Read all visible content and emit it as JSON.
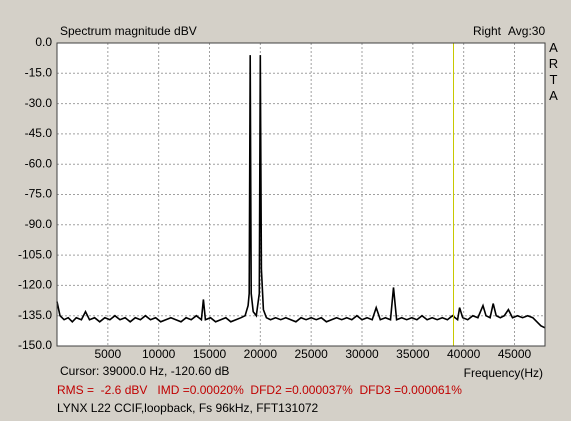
{
  "chart_data": {
    "type": "line",
    "title": "Spectrum magnitude dBV",
    "channel": "Right",
    "averaging": "Avg:30",
    "brand": "ARTA",
    "x_label": "Frequency(Hz)",
    "cursor": {
      "x": 39000,
      "label": "Cursor: 39000.0 Hz, -120.60 dB",
      "color": "#c8c800"
    },
    "measurements": "RMS =  -2.6 dBV   IMD =0.00020%  DFD2 =0.000037%  DFD3 =0.000061%",
    "description": "LYNX L22 CCIF,loopback, Fs 96kHz, FFT131072",
    "color": "#000000",
    "grid": true,
    "xlim": [
      0,
      48000
    ],
    "ylim": [
      -150,
      0
    ],
    "xticks": [
      5000,
      10000,
      15000,
      20000,
      25000,
      30000,
      35000,
      40000,
      45000
    ],
    "yticks": [
      {
        "value": 0,
        "label": "0.0"
      },
      {
        "value": -15,
        "label": "-15.0"
      },
      {
        "value": -30,
        "label": "-30.0"
      },
      {
        "value": -45,
        "label": "-45.0"
      },
      {
        "value": -60,
        "label": "-60.0"
      },
      {
        "value": -75,
        "label": "-75.0"
      },
      {
        "value": -90,
        "label": "-90.0"
      },
      {
        "value": -105,
        "label": "-105.0"
      },
      {
        "value": -120,
        "label": "-120.0"
      },
      {
        "value": -135,
        "label": "-135.0"
      },
      {
        "value": -150,
        "label": "-150.0"
      }
    ],
    "x": [
      0,
      300,
      700,
      1100,
      1500,
      1900,
      2400,
      2800,
      3200,
      3700,
      4200,
      4700,
      5200,
      5700,
      6200,
      6700,
      7200,
      7700,
      8200,
      8700,
      9200,
      9700,
      10200,
      10700,
      11200,
      11700,
      12200,
      12700,
      13200,
      13700,
      14200,
      14400,
      14600,
      15100,
      15600,
      16100,
      16600,
      17100,
      17600,
      18100,
      18500,
      18800,
      18900,
      19000,
      19100,
      19300,
      19600,
      19900,
      20000,
      20100,
      20300,
      20600,
      21000,
      21500,
      22000,
      22500,
      23000,
      23500,
      24000,
      24500,
      25000,
      25500,
      26000,
      26500,
      27000,
      27500,
      28000,
      28500,
      29000,
      29500,
      30000,
      30500,
      31000,
      31400,
      31800,
      32300,
      32800,
      33100,
      33400,
      33900,
      34400,
      34900,
      35400,
      35900,
      36400,
      36900,
      37400,
      37900,
      38400,
      38900,
      39400,
      39600,
      39900,
      40400,
      40900,
      41400,
      41900,
      42200,
      42600,
      42900,
      43200,
      43600,
      44000,
      44400,
      44800,
      45300,
      45800,
      46300,
      46800,
      47200,
      47600,
      48000
    ],
    "values": [
      -128,
      -135,
      -137,
      -136,
      -138,
      -136,
      -137,
      -133,
      -137,
      -136,
      -138,
      -136,
      -137,
      -135,
      -137,
      -136,
      -138,
      -136,
      -137,
      -135,
      -137,
      -136,
      -138,
      -137,
      -136,
      -137,
      -138,
      -136,
      -137,
      -135,
      -137,
      -127,
      -137,
      -136,
      -138,
      -137,
      -136,
      -138,
      -137,
      -136,
      -135,
      -130,
      -124,
      -6,
      -124,
      -133,
      -135,
      -124,
      -6,
      -112,
      -132,
      -136,
      -137,
      -136,
      -137,
      -136,
      -137,
      -138,
      -136,
      -137,
      -136,
      -137,
      -136,
      -138,
      -137,
      -136,
      -137,
      -136,
      -137,
      -135,
      -137,
      -136,
      -137,
      -131,
      -137,
      -136,
      -137,
      -121,
      -137,
      -136,
      -137,
      -136,
      -137,
      -135,
      -137,
      -136,
      -137,
      -136,
      -137,
      -135,
      -137,
      -131,
      -136,
      -137,
      -135,
      -136,
      -130,
      -135,
      -136,
      -129,
      -135,
      -136,
      -135,
      -132,
      -136,
      -135,
      -136,
      -135,
      -136,
      -138,
      -140,
      -141
    ]
  }
}
